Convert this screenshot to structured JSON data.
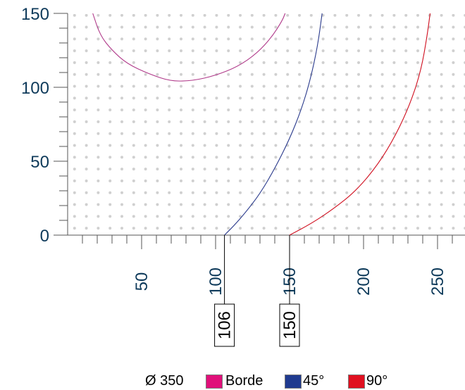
{
  "chart_data": {
    "type": "line",
    "xlim": [
      0,
      260
    ],
    "ylim": [
      0,
      150
    ],
    "x_ticks": [
      50,
      100,
      150,
      200,
      250
    ],
    "y_ticks": [
      0,
      50,
      100,
      150
    ],
    "grid": "dotted",
    "series": [
      {
        "name": "Borde",
        "color": "#b03a8a",
        "points": [
          [
            17,
            150
          ],
          [
            22,
            135
          ],
          [
            30,
            125
          ],
          [
            40,
            116
          ],
          [
            55,
            109
          ],
          [
            70,
            104
          ],
          [
            85,
            104.5
          ],
          [
            100,
            108
          ],
          [
            115,
            114
          ],
          [
            128,
            123
          ],
          [
            138,
            134
          ],
          [
            145,
            145
          ],
          [
            147,
            150
          ]
        ]
      },
      {
        "name": "45°",
        "color": "#2a3a8c",
        "points": [
          [
            106,
            0
          ],
          [
            112,
            6
          ],
          [
            120,
            15
          ],
          [
            130,
            28
          ],
          [
            140,
            45
          ],
          [
            150,
            65
          ],
          [
            158,
            85
          ],
          [
            164,
            105
          ],
          [
            169,
            128
          ],
          [
            172,
            150
          ]
        ]
      },
      {
        "name": "90°",
        "color": "#d01020",
        "points": [
          [
            150,
            0
          ],
          [
            165,
            8
          ],
          [
            180,
            18
          ],
          [
            195,
            30
          ],
          [
            210,
            48
          ],
          [
            222,
            68
          ],
          [
            232,
            90
          ],
          [
            239,
            112
          ],
          [
            243,
            135
          ],
          [
            245,
            150
          ]
        ]
      }
    ],
    "callouts": [
      {
        "x": 106,
        "label": "106"
      },
      {
        "x": 150,
        "label": "150"
      }
    ]
  },
  "legend": {
    "diameter_label": "Ø 350",
    "items": [
      {
        "label": "Borde",
        "color": "#e0107a"
      },
      {
        "label": "45°",
        "color": "#1f3a8f"
      },
      {
        "label": "90°",
        "color": "#e01020"
      }
    ]
  }
}
